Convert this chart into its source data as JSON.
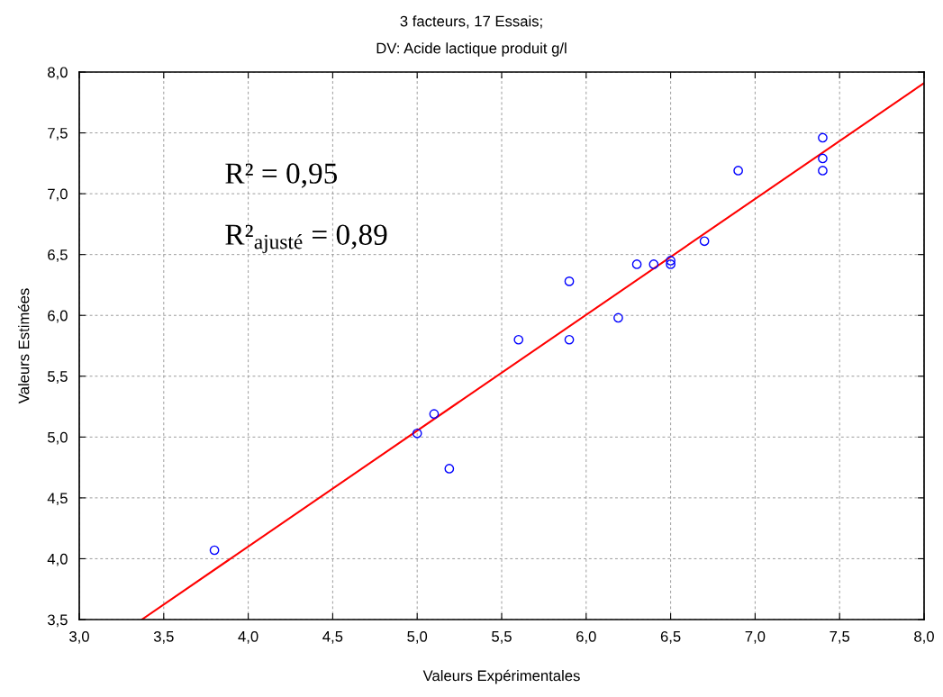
{
  "chart_data": {
    "type": "scatter",
    "title": "3 facteurs, 17 Essais;",
    "subtitle": "DV: Acide lactique produit g/l",
    "xlabel": "Valeurs Expérimentales",
    "ylabel": "Valeurs Estimées",
    "annotations": [
      "R² = 0,95",
      "R²$_{ajusté}$ = 0,89"
    ],
    "series": [
      {
        "color": "#0000ff",
        "marker": "circle",
        "x": [
          3.8,
          5.0,
          5.1,
          5.19,
          5.6,
          5.9,
          5.9,
          6.19,
          6.3,
          6.4,
          6.5,
          6.5,
          6.7,
          6.9,
          7.4,
          7.4,
          7.4
        ],
        "values": [
          4.07,
          5.03,
          5.19,
          4.74,
          5.8,
          5.8,
          6.28,
          5.98,
          6.42,
          6.42,
          6.45,
          6.42,
          6.61,
          7.19,
          7.46,
          7.29,
          7.19
        ]
      },
      {
        "type": "line",
        "color": "#ff0000",
        "x": [
          3.37,
          8.0
        ],
        "values": [
          3.5,
          7.91
        ]
      }
    ],
    "xlim": [
      3.0,
      8.0
    ],
    "ylim": [
      3.5,
      8.0
    ],
    "xticks": [
      {
        "value": 3.0,
        "label": "3,0"
      },
      {
        "value": 3.5,
        "label": "3,5"
      },
      {
        "value": 4.0,
        "label": "4,0"
      },
      {
        "value": 4.5,
        "label": "4,5"
      },
      {
        "value": 5.0,
        "label": "5,0"
      },
      {
        "value": 5.5,
        "label": "5,5"
      },
      {
        "value": 6.0,
        "label": "6,0"
      },
      {
        "value": 6.5,
        "label": "6,5"
      },
      {
        "value": 7.0,
        "label": "7,0"
      },
      {
        "value": 7.5,
        "label": "7,5"
      },
      {
        "value": 8.0,
        "label": "8,0"
      }
    ],
    "yticks": [
      {
        "value": 3.5,
        "label": "3,5"
      },
      {
        "value": 4.0,
        "label": "4,0"
      },
      {
        "value": 4.5,
        "label": "4,5"
      },
      {
        "value": 5.0,
        "label": "5,0"
      },
      {
        "value": 5.5,
        "label": "5,5"
      },
      {
        "value": 6.0,
        "label": "6,0"
      },
      {
        "value": 6.5,
        "label": "6,5"
      },
      {
        "value": 7.0,
        "label": "7,0"
      },
      {
        "value": 7.5,
        "label": "7,5"
      },
      {
        "value": 8.0,
        "label": "8,0"
      }
    ],
    "grid": true
  }
}
